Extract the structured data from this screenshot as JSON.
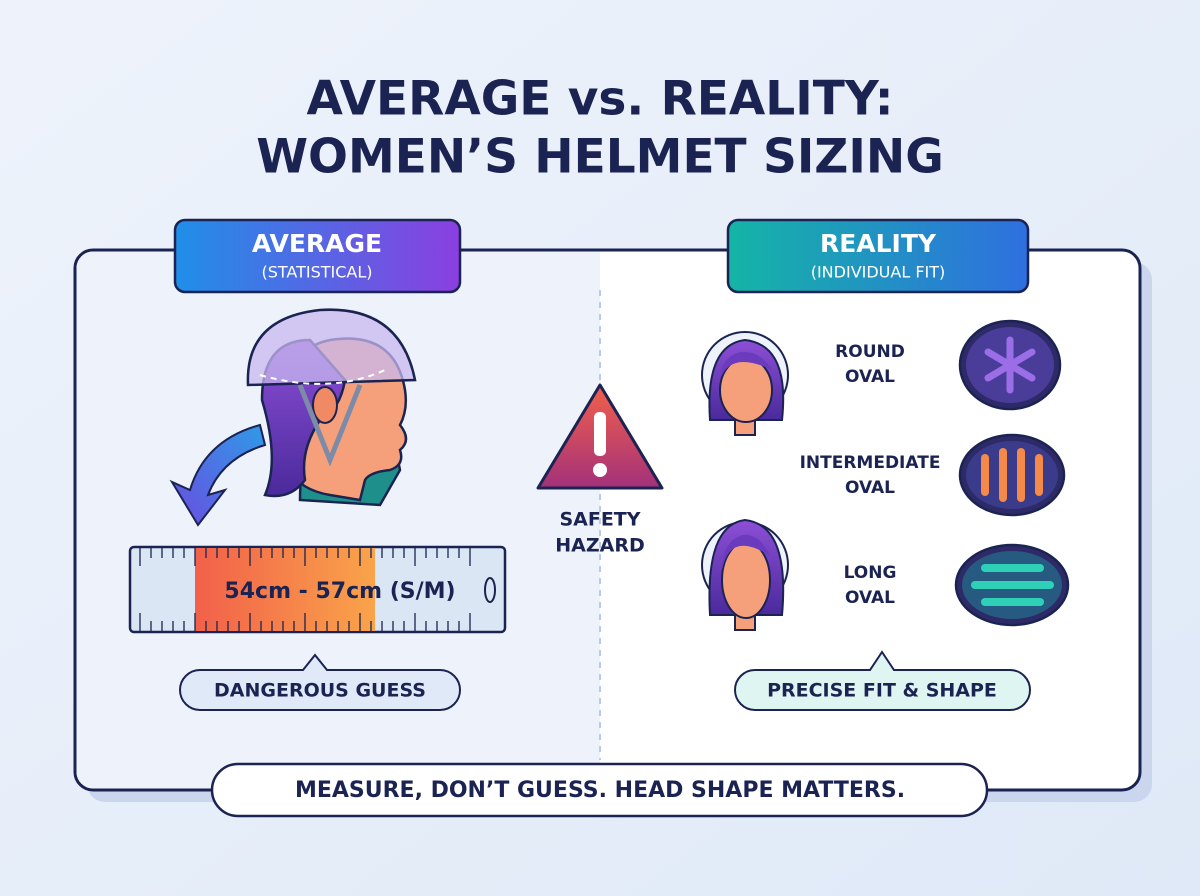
{
  "header": {
    "title_lines": [
      "AVERAGE vs. REALITY:",
      "WOMEN’S HELMET SIZING"
    ]
  },
  "left_panel": {
    "heading": "AVERAGE",
    "subheading": "(STATISTICAL)",
    "ruler_label": "54cm - 57cm (S/M)",
    "callout": "DANGEROUS GUESS"
  },
  "center": {
    "warning_lines": [
      "SAFETY",
      "HAZARD"
    ]
  },
  "right_panel": {
    "heading": "REALITY",
    "subheading": "(INDIVIDUAL FIT)",
    "shapes": [
      {
        "lines": [
          "ROUND",
          "OVAL"
        ]
      },
      {
        "lines": [
          "INTERMEDIATE",
          "OVAL"
        ]
      },
      {
        "lines": [
          "LONG",
          "OVAL"
        ]
      }
    ],
    "callout": "PRECISE FIT & SHAPE"
  },
  "footer": {
    "message": "MEASURE, DON’T GUESS. HEAD SHAPE MATTERS."
  }
}
